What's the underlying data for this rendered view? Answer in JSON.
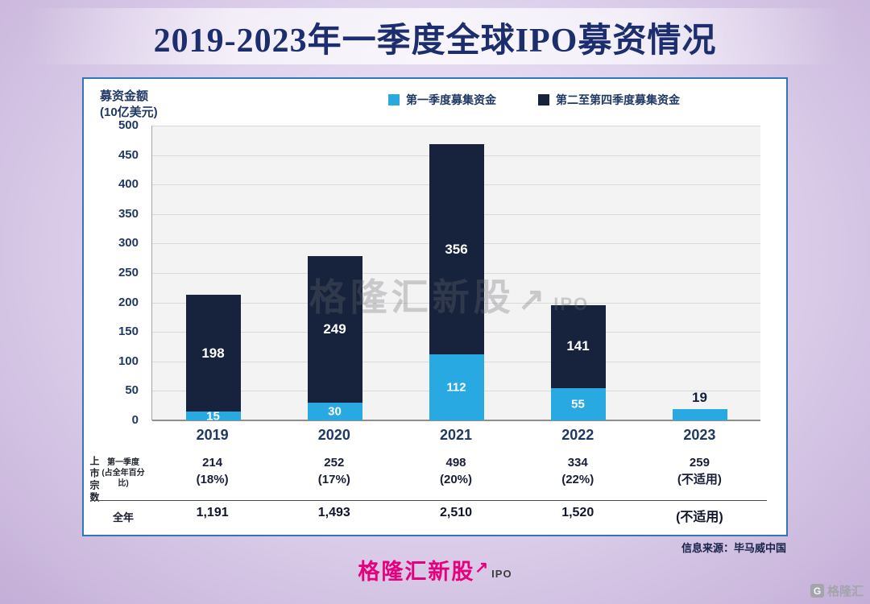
{
  "title": "2019-2023年一季度全球IPO募资情况",
  "chart_data": {
    "type": "bar",
    "stacked": true,
    "title": "2019-2023年一季度全球IPO募资情况",
    "categories": [
      "2019",
      "2020",
      "2021",
      "2022",
      "2023"
    ],
    "series": [
      {
        "name": "第一季度募集资金",
        "color": "#29a9e1",
        "values": [
          15,
          30,
          112,
          55,
          19
        ]
      },
      {
        "name": "第二至第四季度募集资金",
        "color": "#17233c",
        "values": [
          198,
          249,
          356,
          141,
          0
        ]
      }
    ],
    "ylabel_line1": "募资金额",
    "ylabel_line2": "(10亿美元)",
    "ylim": [
      0,
      500
    ],
    "ytick_step": 50,
    "grid": true,
    "legend_position": "top"
  },
  "listing_table": {
    "axis_title": "上市宗数",
    "row1_label_line1": "第一季度",
    "row1_label_line2": "(占全年百分比)",
    "row1": [
      {
        "count": "214",
        "pct": "(18%)"
      },
      {
        "count": "252",
        "pct": "(17%)"
      },
      {
        "count": "498",
        "pct": "(20%)"
      },
      {
        "count": "334",
        "pct": "(22%)"
      },
      {
        "count": "259",
        "pct": "(不适用)"
      }
    ],
    "row2_label": "全年",
    "row2": [
      "1,191",
      "1,493",
      "2,510",
      "1,520",
      "(不适用)"
    ]
  },
  "source": "信息来源：毕马威中国",
  "watermark": {
    "text": "格隆汇新股",
    "arrow": "↗",
    "suffix": "IPO"
  },
  "footer_logo": {
    "text": "格隆汇新股",
    "arrow": "↗",
    "suffix": "IPO"
  },
  "corner_logo": {
    "icon": "G",
    "text": "格隆汇"
  },
  "colors": {
    "q1_blue": "#29a9e1",
    "navy": "#17233c",
    "magenta": "#e6007e",
    "navy_text": "#1f3864"
  }
}
